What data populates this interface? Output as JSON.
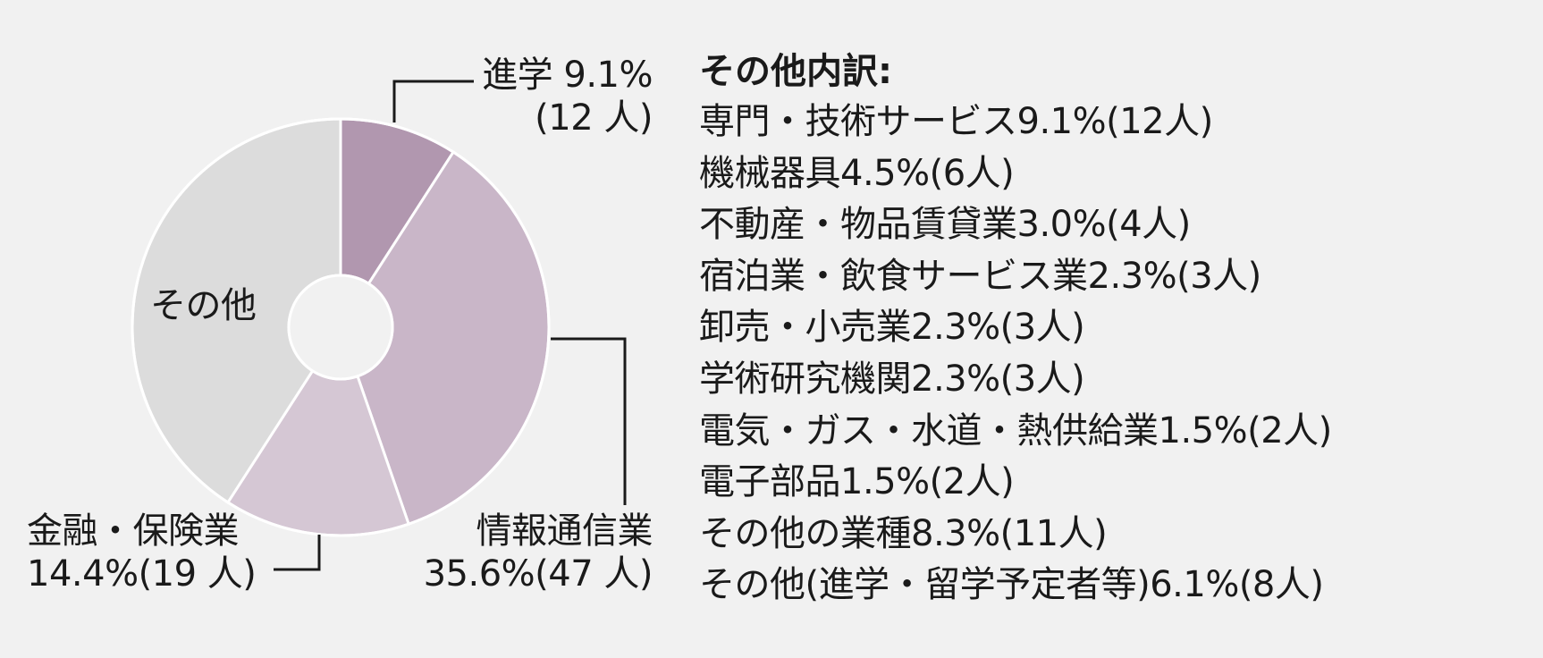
{
  "chart_data": {
    "type": "pie",
    "slices": [
      {
        "label": "進学",
        "value": 9.1,
        "count_text": "(12人)",
        "percent_text": "9.1%",
        "color": "#b197af"
      },
      {
        "label": "情報通信業",
        "value": 35.6,
        "count_text": "(47人)",
        "percent_text": "35.6%",
        "color": "#c9b6c8"
      },
      {
        "label": "金融・保険業",
        "value": 14.4,
        "count_text": "(19人)",
        "percent_text": "14.4%",
        "color": "#d5c7d4"
      },
      {
        "label": "その他",
        "value": 40.9,
        "color": "#dcdcdc"
      }
    ],
    "labels": {
      "shingaku_line1": "進学 9.1%",
      "shingaku_line2": "(12 人)",
      "joho_line1": "情報通信業",
      "joho_line2": "35.6%(47 人)",
      "kinyu_line1": "金融・保険業",
      "kinyu_line2": "14.4%(19 人)",
      "sonota": "その他"
    }
  },
  "other_breakdown": {
    "title": "その他内訳:",
    "items": [
      "専門・技術サービス9.1%(12人)",
      "機械器具4.5%(6人)",
      "不動産・物品賃貸業3.0%(4人)",
      "宿泊業・飲食サービス業2.3%(3人)",
      "卸売・小売業2.3%(3人)",
      "学術研究機関2.3%(3人)",
      "電気・ガス・水道・熱供給業1.5%(2人)",
      "電子部品1.5%(2人)",
      "その他の業種8.3%(11人)",
      "その他(進学・留学予定者等)6.1%(8人)"
    ]
  }
}
